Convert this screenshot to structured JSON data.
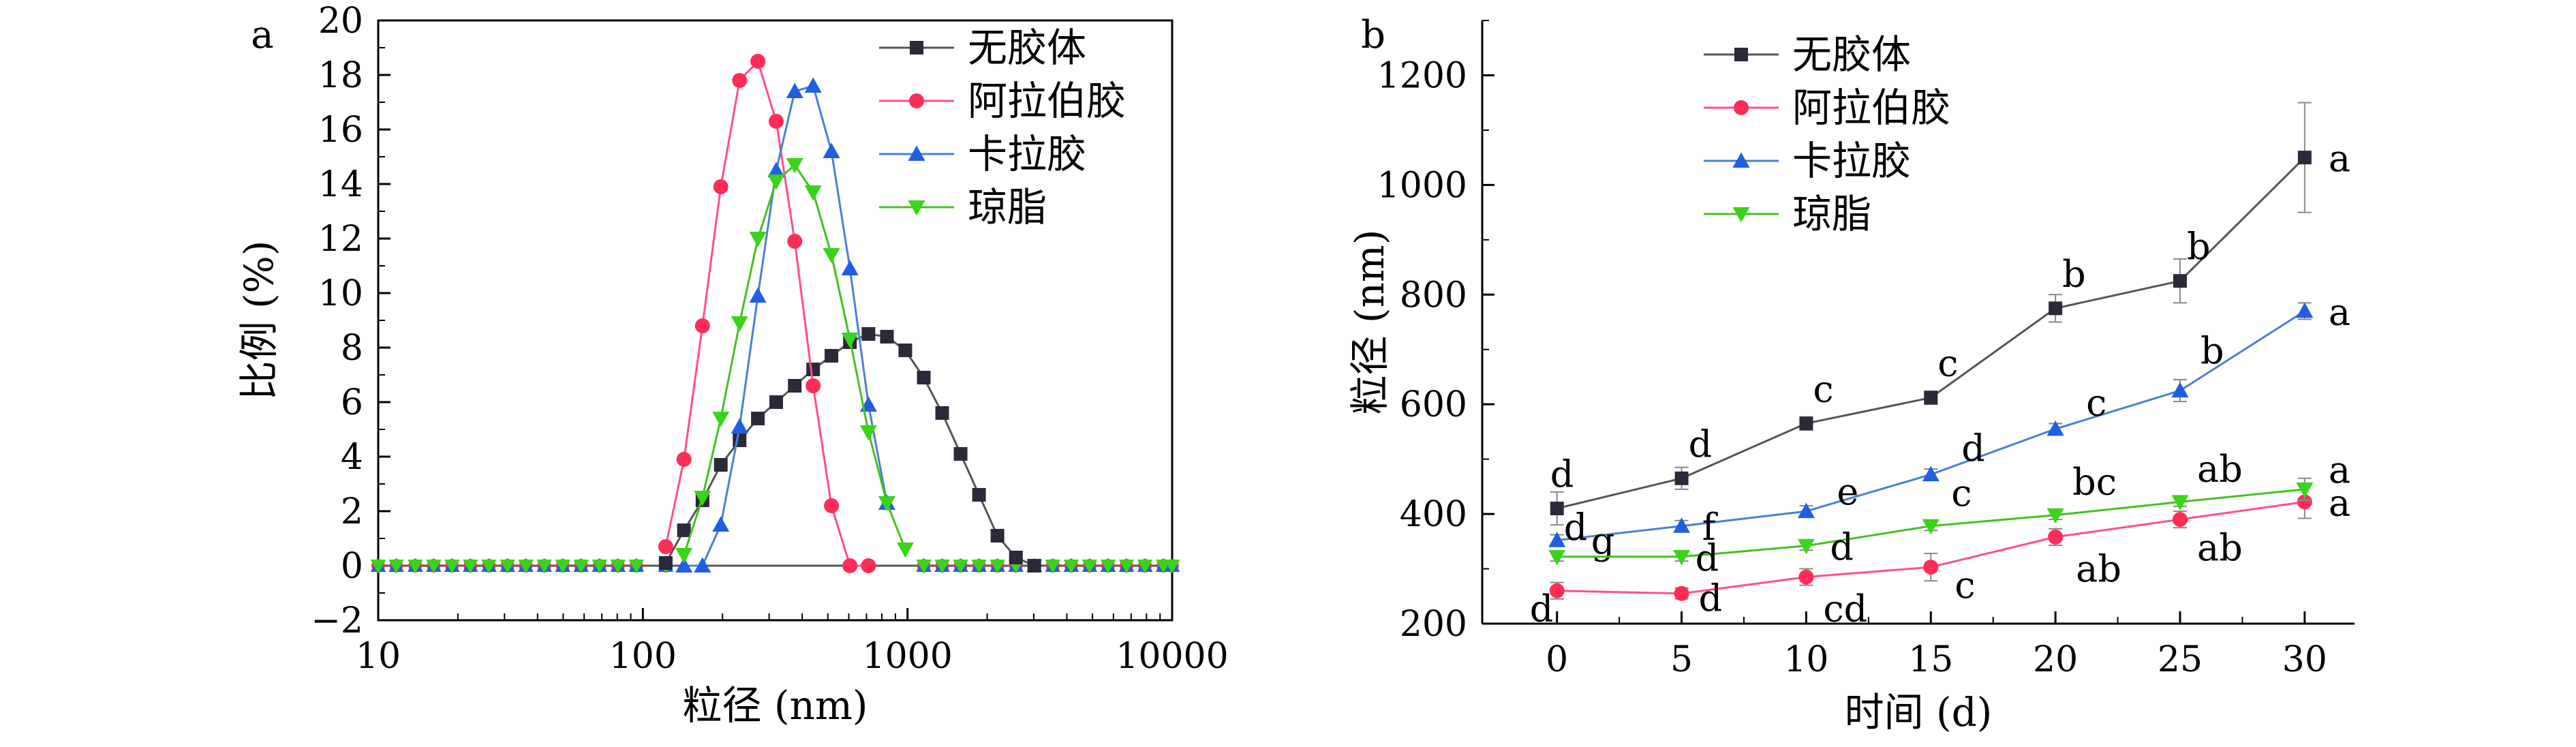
{
  "chart_data": [
    {
      "type": "line",
      "panel_label": "a",
      "xlabel": "粒径 (nm)",
      "ylabel": "比例 (%)",
      "xscale": "log",
      "xlim": [
        10,
        10000
      ],
      "ylim": [
        -2,
        20
      ],
      "xticks": [
        10,
        100,
        1000,
        10000
      ],
      "xtick_labels": [
        "10",
        "100",
        "1000",
        "10000"
      ],
      "yticks": [
        -2,
        0,
        2,
        4,
        6,
        8,
        10,
        12,
        14,
        16,
        18,
        20
      ],
      "ytick_labels": [
        "−2",
        "0",
        "2",
        "4",
        "6",
        "8",
        "10",
        "12",
        "14",
        "16",
        "18",
        "20"
      ],
      "legend_position": "top-right",
      "series": [
        {
          "name": "无胶体",
          "color": "#555555",
          "marker": "square",
          "x": [
            122,
            143,
            168,
            197,
            232,
            272,
            319,
            375,
            440,
            516,
            606,
            712,
            836,
            981,
            1152,
            1352,
            1587,
            1863,
            2187,
            2568,
            3014
          ],
          "y": [
            0.1,
            1.3,
            2.4,
            3.7,
            4.6,
            5.4,
            6.0,
            6.6,
            7.2,
            7.7,
            8.2,
            8.5,
            8.4,
            7.9,
            6.9,
            5.6,
            4.1,
            2.6,
            1.1,
            0.3,
            0
          ]
        },
        {
          "name": "阿拉伯胶",
          "color": "#ff4f8a",
          "marker": "circle",
          "x": [
            122,
            143,
            168,
            197,
            232,
            272,
            319,
            375,
            440,
            516,
            606,
            712
          ],
          "y": [
            0.7,
            3.9,
            8.8,
            13.9,
            17.8,
            18.5,
            16.3,
            11.9,
            6.6,
            2.2,
            0,
            0
          ]
        },
        {
          "name": "卡拉胶",
          "color": "#4a7fd8",
          "marker": "triangle-up",
          "x": [
            143,
            168,
            197,
            232,
            272,
            319,
            375,
            440,
            516,
            606,
            712,
            836
          ],
          "y": [
            0,
            0,
            1.5,
            5.1,
            9.9,
            14.5,
            17.4,
            17.6,
            15.2,
            10.9,
            5.9,
            2.3
          ]
        },
        {
          "name": "琼脂",
          "color": "#44c020",
          "marker": "triangle-down",
          "x": [
            143,
            168,
            197,
            232,
            272,
            319,
            375,
            440,
            516,
            606,
            712,
            836,
            981
          ],
          "y": [
            0.4,
            2.5,
            5.4,
            8.9,
            12.0,
            14.1,
            14.7,
            13.7,
            11.4,
            8.3,
            4.9,
            2.3,
            0.6
          ]
        }
      ],
      "baseline": {
        "x": [
          10,
          11.7,
          13.8,
          16.2,
          19,
          22.3,
          26.2,
          30.8,
          36.1,
          42.4,
          49.8,
          58.4,
          68.6,
          80.5,
          94.5,
          122,
          1152,
          1352,
          1587,
          1863,
          2187,
          2568,
          3014,
          3539,
          4155,
          4878,
          5727,
          6724,
          7894,
          9268,
          10000
        ],
        "y": 0
      }
    },
    {
      "type": "line",
      "panel_label": "b",
      "xlabel": "时间 (d)",
      "ylabel": "粒径 (nm)",
      "xlim": [
        -3,
        32
      ],
      "ylim": [
        200,
        1300
      ],
      "xticks": [
        0,
        5,
        10,
        15,
        20,
        25,
        30
      ],
      "xtick_labels": [
        "0",
        "5",
        "10",
        "15",
        "20",
        "25",
        "30"
      ],
      "yticks": [
        200,
        400,
        600,
        800,
        1000,
        1200
      ],
      "ytick_labels": [
        "200",
        "400",
        "600",
        "800",
        "1000",
        "1200"
      ],
      "legend_position": "top-left",
      "series": [
        {
          "name": "无胶体",
          "color": "#555555",
          "marker": "square",
          "x": [
            0,
            5,
            10,
            15,
            20,
            25,
            30
          ],
          "y": [
            410,
            465,
            565,
            612,
            775,
            825,
            1050
          ],
          "err": [
            30,
            20,
            12,
            12,
            25,
            40,
            100
          ],
          "letters": [
            "d",
            "d",
            "c",
            "c",
            "b",
            "b",
            "a"
          ]
        },
        {
          "name": "阿拉伯胶",
          "color": "#ff4f8a",
          "marker": "circle",
          "x": [
            0,
            5,
            10,
            15,
            20,
            25,
            30
          ],
          "y": [
            260,
            255,
            285,
            303,
            358,
            390,
            422
          ],
          "err": [
            15,
            10,
            15,
            25,
            15,
            15,
            30
          ],
          "letters": [
            "d",
            "d",
            "cd",
            "c",
            "ab",
            "ab",
            "a"
          ]
        },
        {
          "name": "卡拉胶",
          "color": "#4a7fd8",
          "marker": "triangle-up",
          "x": [
            0,
            5,
            10,
            15,
            20,
            25,
            30
          ],
          "y": [
            352,
            378,
            405,
            472,
            555,
            625,
            770
          ],
          "err": [
            10,
            10,
            10,
            10,
            10,
            20,
            15
          ],
          "letters": [
            "g",
            "f",
            "e",
            "d",
            "c",
            "b",
            "a"
          ]
        },
        {
          "name": "琼脂",
          "color": "#44c020",
          "marker": "triangle-down",
          "x": [
            0,
            5,
            10,
            15,
            20,
            25,
            30
          ],
          "y": [
            322,
            322,
            342,
            378,
            398,
            422,
            445
          ],
          "err": [
            8,
            8,
            8,
            8,
            8,
            8,
            20
          ],
          "letters": [
            "d",
            "d",
            "d",
            "c",
            "bc",
            "ab",
            "a"
          ]
        }
      ]
    }
  ]
}
